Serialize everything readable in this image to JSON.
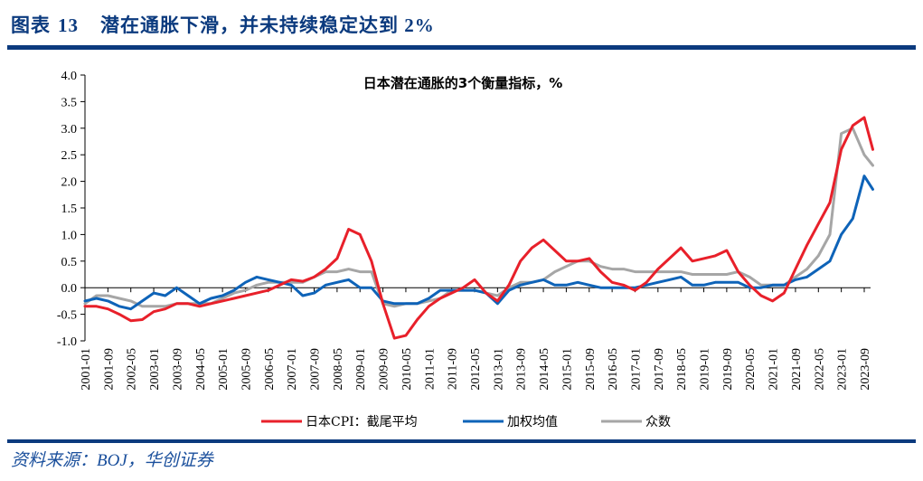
{
  "header": {
    "label": "图表",
    "number": "13",
    "title": "潜在通胀下滑，并未持续稳定达到 2%"
  },
  "footer": {
    "source": "资料来源：BOJ，华创证券"
  },
  "colors": {
    "brand": "#0b3a7e",
    "red": "#e8202a",
    "blue": "#0e63b8",
    "gray": "#a6a6a6"
  },
  "chart_data": {
    "type": "line",
    "title": "日本潜在通胀的3个衡量指标，%",
    "xlabel": "",
    "ylabel": "",
    "ylim": [
      -1.0,
      4.0
    ],
    "yticks": [
      "4.0",
      "3.5",
      "3.0",
      "2.5",
      "2.0",
      "1.5",
      "1.0",
      "0.5",
      "0.0",
      "-0.5",
      "-1.0"
    ],
    "xticks": [
      "2001-01",
      "2001-09",
      "2002-05",
      "2003-01",
      "2003-09",
      "2004-05",
      "2005-01",
      "2005-09",
      "2006-05",
      "2007-01",
      "2007-09",
      "2008-05",
      "2009-01",
      "2009-09",
      "2010-05",
      "2011-01",
      "2011-09",
      "2012-05",
      "2013-01",
      "2013-09",
      "2014-05",
      "2015-01",
      "2015-09",
      "2016-05",
      "2017-01",
      "2017-09",
      "2018-05",
      "2019-01",
      "2019-09",
      "2020-05",
      "2021-01",
      "2021-09",
      "2022-05",
      "2023-01",
      "2023-09"
    ],
    "legend_position": "bottom",
    "x_start": "2001-01",
    "x_step_months": 4,
    "x": [
      "2001-01",
      "2001-05",
      "2001-09",
      "2002-01",
      "2002-05",
      "2002-09",
      "2003-01",
      "2003-05",
      "2003-09",
      "2004-01",
      "2004-05",
      "2004-09",
      "2005-01",
      "2005-05",
      "2005-09",
      "2006-01",
      "2006-05",
      "2006-09",
      "2007-01",
      "2007-05",
      "2007-09",
      "2008-01",
      "2008-05",
      "2008-09",
      "2009-01",
      "2009-05",
      "2009-09",
      "2010-01",
      "2010-05",
      "2010-09",
      "2011-01",
      "2011-05",
      "2011-09",
      "2012-01",
      "2012-05",
      "2012-09",
      "2013-01",
      "2013-05",
      "2013-09",
      "2014-01",
      "2014-05",
      "2014-09",
      "2015-01",
      "2015-05",
      "2015-09",
      "2016-01",
      "2016-05",
      "2016-09",
      "2017-01",
      "2017-05",
      "2017-09",
      "2018-01",
      "2018-05",
      "2018-09",
      "2019-01",
      "2019-05",
      "2019-09",
      "2020-01",
      "2020-05",
      "2020-09",
      "2021-01",
      "2021-05",
      "2021-09",
      "2022-01",
      "2022-05",
      "2022-09",
      "2023-01",
      "2023-05",
      "2023-09",
      "2023-12"
    ],
    "series": [
      {
        "name": "日本CPI：截尾平均",
        "color": "#e8202a",
        "values": [
          -0.35,
          -0.35,
          -0.4,
          -0.5,
          -0.62,
          -0.6,
          -0.45,
          -0.4,
          -0.3,
          -0.3,
          -0.35,
          -0.3,
          -0.25,
          -0.2,
          -0.15,
          -0.1,
          -0.05,
          0.05,
          0.15,
          0.12,
          0.2,
          0.35,
          0.55,
          1.1,
          1.0,
          0.5,
          -0.3,
          -0.95,
          -0.9,
          -0.6,
          -0.35,
          -0.2,
          -0.1,
          0.0,
          0.15,
          -0.1,
          -0.25,
          0.05,
          0.5,
          0.75,
          0.9,
          0.7,
          0.5,
          0.5,
          0.55,
          0.3,
          0.1,
          0.05,
          -0.05,
          0.1,
          0.35,
          0.55,
          0.75,
          0.5,
          0.55,
          0.6,
          0.7,
          0.3,
          0.05,
          -0.15,
          -0.25,
          -0.1,
          0.35,
          0.8,
          1.2,
          1.6,
          2.6,
          3.05,
          3.2,
          2.6
        ]
      },
      {
        "name": "加权均值",
        "color": "#0e63b8",
        "values": [
          -0.25,
          -0.2,
          -0.25,
          -0.35,
          -0.4,
          -0.25,
          -0.1,
          -0.15,
          0.0,
          -0.15,
          -0.3,
          -0.2,
          -0.15,
          -0.05,
          0.1,
          0.2,
          0.15,
          0.1,
          0.05,
          -0.15,
          -0.1,
          0.05,
          0.1,
          0.15,
          0.0,
          0.0,
          -0.25,
          -0.3,
          -0.3,
          -0.3,
          -0.2,
          -0.05,
          -0.05,
          -0.05,
          -0.05,
          -0.1,
          -0.3,
          -0.05,
          0.05,
          0.1,
          0.15,
          0.05,
          0.05,
          0.1,
          0.05,
          0.0,
          0.0,
          0.0,
          0.0,
          0.05,
          0.1,
          0.15,
          0.2,
          0.05,
          0.05,
          0.1,
          0.1,
          0.1,
          0.0,
          0.0,
          0.05,
          0.05,
          0.15,
          0.2,
          0.35,
          0.5,
          1.0,
          1.3,
          2.1,
          1.85
        ]
      },
      {
        "name": "众数",
        "color": "#a6a6a6",
        "values": [
          -0.3,
          -0.15,
          -0.15,
          -0.2,
          -0.25,
          -0.35,
          -0.35,
          -0.35,
          -0.3,
          -0.3,
          -0.3,
          -0.3,
          -0.2,
          -0.1,
          -0.05,
          0.05,
          0.1,
          0.1,
          0.1,
          0.1,
          0.2,
          0.3,
          0.3,
          0.35,
          0.3,
          0.3,
          -0.3,
          -0.35,
          -0.3,
          -0.3,
          -0.25,
          -0.2,
          -0.05,
          -0.05,
          -0.05,
          -0.1,
          -0.15,
          0.0,
          0.1,
          0.1,
          0.15,
          0.3,
          0.4,
          0.5,
          0.5,
          0.4,
          0.35,
          0.35,
          0.3,
          0.3,
          0.3,
          0.3,
          0.3,
          0.25,
          0.25,
          0.25,
          0.25,
          0.3,
          0.2,
          0.05,
          0.05,
          0.05,
          0.2,
          0.35,
          0.6,
          1.0,
          2.9,
          3.0,
          2.5,
          2.3
        ]
      }
    ]
  }
}
